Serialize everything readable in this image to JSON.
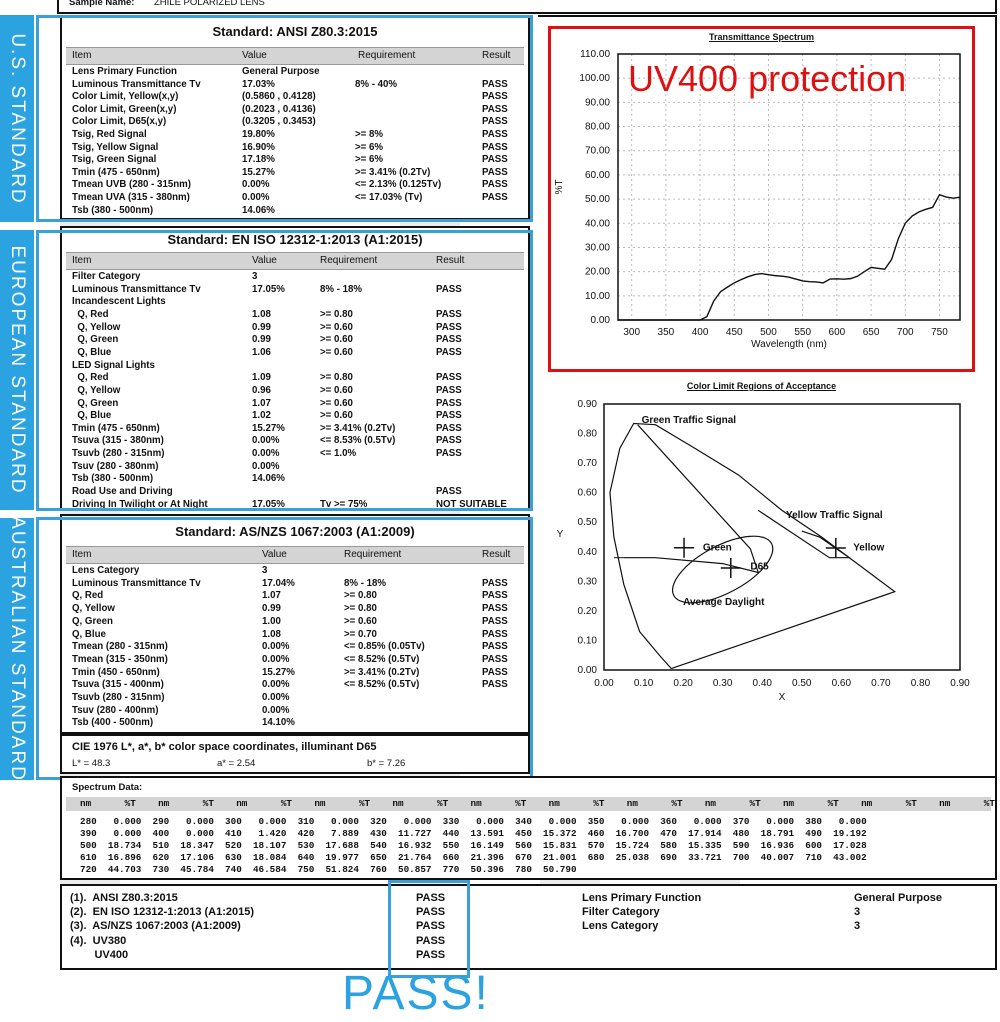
{
  "sample": {
    "label": "Sample Name:",
    "value": "ZHILE POLARIZED LENS"
  },
  "side_tabs": [
    "U.S. STANDARD",
    "EUROPEAN STANDARD",
    "AUSTRALIAN  STANDARD"
  ],
  "us": {
    "title": "Standard: ANSI Z80.3:2015",
    "headers": [
      "Item",
      "Value",
      "Requirement",
      "Result"
    ],
    "rows": [
      [
        "Lens Primary Function",
        "General Purpose",
        "",
        ""
      ],
      [
        "Luminous Transmittance Tv",
        "17.03%",
        "8% - 40%",
        "PASS"
      ],
      [
        "Color Limit, Yellow(x,y)",
        "(0.5860 , 0.4128)",
        "",
        "PASS"
      ],
      [
        "Color Limit, Green(x,y)",
        "(0.2023 , 0.4136)",
        "",
        "PASS"
      ],
      [
        "Color Limit, D65(x,y)",
        "(0.3205 , 0.3453)",
        "",
        "PASS"
      ],
      [
        "Tsig, Red Signal",
        "19.80%",
        ">= 8%",
        "PASS"
      ],
      [
        "Tsig, Yellow Signal",
        "16.90%",
        ">= 6%",
        "PASS"
      ],
      [
        "Tsig, Green Signal",
        "17.18%",
        ">= 6%",
        "PASS"
      ],
      [
        "Tmin (475 - 650nm)",
        "15.27%",
        ">= 3.41% (0.2Tv)",
        "PASS"
      ],
      [
        "Tmean UVB (280 - 315nm)",
        "0.00%",
        "<= 2.13% (0.125Tv)",
        "PASS"
      ],
      [
        "Tmean UVA (315 - 380nm)",
        "0.00%",
        "<= 17.03% (Tv)",
        "PASS"
      ],
      [
        "Tsb (380 - 500nm)",
        "14.06%",
        "",
        ""
      ]
    ]
  },
  "eu": {
    "title": "Standard: EN ISO 12312-1:2013 (A1:2015)",
    "headers": [
      "Item",
      "Value",
      "Requirement",
      "Result"
    ],
    "rows": [
      [
        "Filter Category",
        "3",
        "",
        ""
      ],
      [
        "Luminous Transmittance Tv",
        "17.05%",
        "8% - 18%",
        "PASS"
      ],
      [
        "Incandescent Lights",
        "",
        "",
        ""
      ],
      [
        "  Q, Red",
        "1.08",
        ">= 0.80",
        "PASS"
      ],
      [
        "  Q, Yellow",
        "0.99",
        ">= 0.60",
        "PASS"
      ],
      [
        "  Q, Green",
        "0.99",
        ">= 0.60",
        "PASS"
      ],
      [
        "  Q, Blue",
        "1.06",
        ">= 0.60",
        "PASS"
      ],
      [
        "LED Signal Lights",
        "",
        "",
        ""
      ],
      [
        "  Q, Red",
        "1.09",
        ">= 0.80",
        "PASS"
      ],
      [
        "  Q, Yellow",
        "0.96",
        ">= 0.60",
        "PASS"
      ],
      [
        "  Q, Green",
        "1.07",
        ">= 0.60",
        "PASS"
      ],
      [
        "  Q, Blue",
        "1.02",
        ">= 0.60",
        "PASS"
      ],
      [
        "Tmin (475 - 650nm)",
        "15.27%",
        ">= 3.41% (0.2Tv)",
        "PASS"
      ],
      [
        "Tsuva (315 - 380nm)",
        "0.00%",
        "<= 8.53% (0.5Tv)",
        "PASS"
      ],
      [
        "Tsuvb (280 - 315nm)",
        "0.00%",
        "<= 1.0%",
        "PASS"
      ],
      [
        "Tsuv (280 - 380nm)",
        "0.00%",
        "",
        ""
      ],
      [
        "Tsb (380 - 500nm)",
        "14.06%",
        "",
        ""
      ],
      [
        "Road Use and Driving",
        "",
        "",
        "PASS"
      ],
      [
        "Driving In Twilight or At Night",
        "17.05%",
        "Tv >= 75%",
        "NOT SUITABLE"
      ]
    ]
  },
  "au": {
    "title": "Standard: AS/NZS 1067:2003 (A1:2009)",
    "headers": [
      "Item",
      "Value",
      "Requirement",
      "Result"
    ],
    "rows": [
      [
        "Lens Category",
        "3",
        "",
        ""
      ],
      [
        "Luminous Transmittance Tv",
        "17.04%",
        "8% - 18%",
        "PASS"
      ],
      [
        "Q, Red",
        "1.07",
        ">= 0.80",
        "PASS"
      ],
      [
        "Q, Yellow",
        "0.99",
        ">= 0.80",
        "PASS"
      ],
      [
        "Q, Green",
        "1.00",
        ">= 0.60",
        "PASS"
      ],
      [
        "Q, Blue",
        "1.08",
        ">= 0.70",
        "PASS"
      ],
      [
        "Tmean (280 - 315nm)",
        "0.00%",
        "<= 0.85% (0.05Tv)",
        "PASS"
      ],
      [
        "Tmean (315 - 350nm)",
        "0.00%",
        "<= 8.52% (0.5Tv)",
        "PASS"
      ],
      [
        "Tmin (450 - 650nm)",
        "15.27%",
        ">= 3.41% (0.2Tv)",
        "PASS"
      ],
      [
        "Tsuva (315 - 400nm)",
        "0.00%",
        "<= 8.52% (0.5Tv)",
        "PASS"
      ],
      [
        "Tsuvb (280 - 315nm)",
        "0.00%",
        "",
        ""
      ],
      [
        "Tsuv (280 - 400nm)",
        "0.00%",
        "",
        ""
      ],
      [
        "Tsb (400 - 500nm)",
        "14.10%",
        "",
        ""
      ]
    ]
  },
  "cie": {
    "title": "CIE 1976 L*, a*, b* color space coordinates, illuminant D65",
    "L": "L* = 48.3",
    "a": "a* = 2.54",
    "b": "b* = 7.26"
  },
  "spectrum": {
    "title": "Spectrum Data:",
    "header": "nm      %T    nm      %T    nm      %T    nm      %T    nm      %T    nm      %T    nm      %T    nm      %T    nm      %T    nm      %T    nm      %T    nm      %T",
    "lines": [
      "280   0.000  290   0.000  300   0.000  310   0.000  320   0.000  330   0.000  340   0.000  350   0.000  360   0.000  370   0.000  380   0.000",
      "390   0.000  400   0.000  410   1.420  420   7.889  430  11.727  440  13.591  450  15.372  460  16.700  470  17.914  480  18.791  490  19.192",
      "500  18.734  510  18.347  520  18.107  530  17.688  540  16.932  550  16.149  560  15.831  570  15.724  580  15.335  590  16.936  600  17.028",
      "610  16.896  620  17.106  630  18.084  640  19.977  650  21.764  660  21.396  670  21.001  680  25.038  690  33.721  700  40.007  710  43.002",
      "720  44.703  730  45.784  740  46.584  750  51.824  760  50.857  770  50.396  780  50.790"
    ]
  },
  "summary": {
    "standards": [
      "(1).  ANSI Z80.3:2015",
      "(2).  EN ISO 12312-1:2013 (A1:2015)",
      "(3).  AS/NZS 1067:2003 (A1:2009)",
      "(4).  UV380",
      "        UV400"
    ],
    "results": [
      "PASS",
      "PASS",
      "PASS",
      "PASS",
      "PASS"
    ],
    "props": [
      [
        "Lens Primary Function",
        "General Purpose"
      ],
      [
        "Filter Category",
        "3"
      ],
      [
        "Lens Category",
        "3"
      ]
    ],
    "big_pass": "PASS!"
  },
  "uv_callout": "UV400 protection",
  "chart_data": [
    {
      "type": "line",
      "title": "Transmittance Spectrum",
      "xlabel": "Wavelength (nm)",
      "ylabel": "%T",
      "xlim": [
        280,
        780
      ],
      "ylim": [
        0,
        110
      ],
      "x_ticks": [
        300,
        350,
        400,
        450,
        500,
        550,
        600,
        650,
        700,
        750
      ],
      "y_ticks": [
        "0.00",
        "10.00",
        "20.00",
        "30.00",
        "40.00",
        "50.00",
        "60.00",
        "70.00",
        "80.00",
        "90.00",
        "100.00",
        "110.00"
      ],
      "grid": true,
      "series": [
        {
          "x": [
            280,
            290,
            300,
            310,
            320,
            330,
            340,
            350,
            360,
            370,
            380,
            390,
            400,
            410,
            420,
            430,
            440,
            450,
            460,
            470,
            480,
            490,
            500,
            510,
            520,
            530,
            540,
            550,
            560,
            570,
            580,
            590,
            600,
            610,
            620,
            630,
            640,
            650,
            660,
            670,
            680,
            690,
            700,
            710,
            720,
            730,
            740,
            750,
            760,
            770,
            780
          ],
          "y": [
            0,
            0,
            0,
            0,
            0,
            0,
            0,
            0,
            0,
            0,
            0,
            0,
            0,
            1.42,
            7.889,
            11.727,
            13.591,
            15.372,
            16.7,
            17.914,
            18.791,
            19.192,
            18.734,
            18.347,
            18.107,
            17.688,
            16.932,
            16.149,
            15.831,
            15.724,
            15.335,
            16.936,
            17.028,
            16.896,
            17.106,
            18.084,
            19.977,
            21.764,
            21.396,
            21.001,
            25.038,
            33.721,
            40.007,
            43.002,
            44.703,
            45.784,
            46.584,
            51.824,
            50.857,
            50.396,
            50.79
          ]
        }
      ]
    },
    {
      "type": "scatter",
      "title": "Color Limit Regions of Acceptance",
      "xlabel": "X",
      "ylabel": "Y",
      "xlim": [
        0,
        0.9
      ],
      "ylim": [
        0,
        0.9
      ],
      "x_ticks": [
        "0.00",
        "0.10",
        "0.20",
        "0.30",
        "0.40",
        "0.50",
        "0.60",
        "0.70",
        "0.80",
        "0.90"
      ],
      "y_ticks": [
        "0.00",
        "0.10",
        "0.20",
        "0.30",
        "0.40",
        "0.50",
        "0.60",
        "0.70",
        "0.80",
        "0.90"
      ],
      "annotations": [
        "Green Traffic Signal",
        "Yellow Traffic Signal",
        "Green",
        "Yellow",
        "D65",
        "Average Daylight"
      ],
      "points": [
        {
          "label": "Green",
          "x": 0.2023,
          "y": 0.4136
        },
        {
          "label": "Yellow",
          "x": 0.586,
          "y": 0.4128
        },
        {
          "label": "D65",
          "x": 0.3205,
          "y": 0.3453
        }
      ]
    }
  ]
}
